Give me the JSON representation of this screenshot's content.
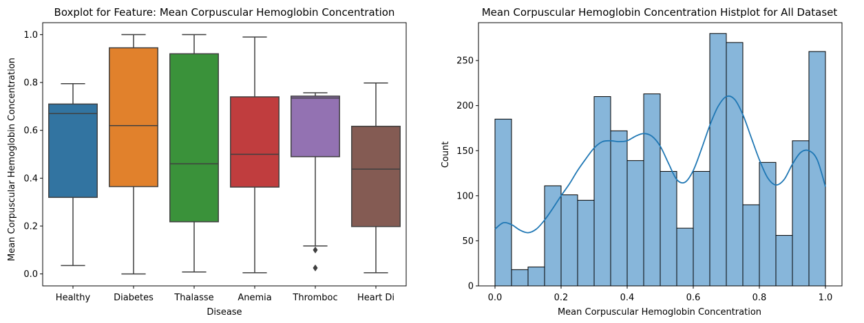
{
  "chart_data": [
    {
      "type": "box",
      "title": "Boxplot for Feature: Mean Corpuscular Hemoglobin Concentration",
      "xlabel": "Disease",
      "ylabel": "Mean Corpuscular Hemoglobin Concentration",
      "ylim": [
        -0.05,
        1.05
      ],
      "yticks": [
        "0.0",
        "0.2",
        "0.4",
        "0.6",
        "0.8",
        "1.0"
      ],
      "categories": [
        "Healthy",
        "Diabetes",
        "Thalasse",
        "Anemia",
        "Thromboc",
        "Heart Di"
      ],
      "colors": [
        "#3274a1",
        "#e1812c",
        "#3a923a",
        "#c03d3e",
        "#9372b2",
        "#845b53"
      ],
      "boxes": [
        {
          "min": 0.035,
          "q1": 0.32,
          "median": 0.67,
          "q3": 0.71,
          "max": 0.795,
          "outliers": []
        },
        {
          "min": 0.0,
          "q1": 0.365,
          "median": 0.62,
          "q3": 0.945,
          "max": 1.0,
          "outliers": []
        },
        {
          "min": 0.008,
          "q1": 0.218,
          "median": 0.46,
          "q3": 0.92,
          "max": 1.0,
          "outliers": []
        },
        {
          "min": 0.005,
          "q1": 0.363,
          "median": 0.5,
          "q3": 0.74,
          "max": 0.99,
          "outliers": []
        },
        {
          "min": 0.117,
          "q1": 0.49,
          "median": 0.735,
          "q3": 0.743,
          "max": 0.757,
          "outliers": [
            0.1,
            0.025
          ]
        },
        {
          "min": 0.005,
          "q1": 0.198,
          "median": 0.438,
          "q3": 0.617,
          "max": 0.798,
          "outliers": []
        }
      ]
    },
    {
      "type": "histogram",
      "title": "Mean Corpuscular Hemoglobin Concentration Histplot for All Dataset",
      "xlabel": "Mean Corpuscular Hemoglobin Concentration",
      "ylabel": "Count",
      "xlim": [
        -0.05,
        1.05
      ],
      "ylim": [
        0,
        292
      ],
      "xticks": [
        "0.0",
        "0.2",
        "0.4",
        "0.6",
        "0.8",
        "1.0"
      ],
      "yticks": [
        "0",
        "50",
        "100",
        "150",
        "200",
        "250"
      ],
      "bin_edges": [
        0.0,
        0.05,
        0.1,
        0.15,
        0.2,
        0.25,
        0.3,
        0.35,
        0.4,
        0.45,
        0.5,
        0.55,
        0.6,
        0.65,
        0.7,
        0.75,
        0.8,
        0.85,
        0.9,
        0.95,
        1.0
      ],
      "counts": [
        185,
        18,
        21,
        111,
        101,
        95,
        210,
        172,
        139,
        213,
        127,
        64,
        127,
        280,
        270,
        90,
        137,
        56,
        161,
        260
      ],
      "bar_color": "#87b6da",
      "kde_color": "#1f77b4",
      "kde": {
        "x": [
          0.0,
          0.025,
          0.05,
          0.075,
          0.1,
          0.125,
          0.15,
          0.175,
          0.2,
          0.225,
          0.25,
          0.275,
          0.3,
          0.325,
          0.35,
          0.375,
          0.4,
          0.425,
          0.45,
          0.475,
          0.5,
          0.525,
          0.55,
          0.575,
          0.6,
          0.625,
          0.65,
          0.675,
          0.7,
          0.725,
          0.75,
          0.775,
          0.8,
          0.825,
          0.85,
          0.875,
          0.9,
          0.925,
          0.95,
          0.975,
          1.0
        ],
        "y": [
          63,
          70,
          68,
          62,
          59,
          63,
          73,
          86,
          100,
          113,
          128,
          141,
          153,
          160,
          161,
          160,
          161,
          166,
          169,
          166,
          155,
          136,
          118,
          115,
          128,
          152,
          178,
          199,
          210,
          207,
          190,
          165,
          140,
          120,
          112,
          118,
          135,
          148,
          150,
          140,
          110
        ]
      }
    }
  ]
}
